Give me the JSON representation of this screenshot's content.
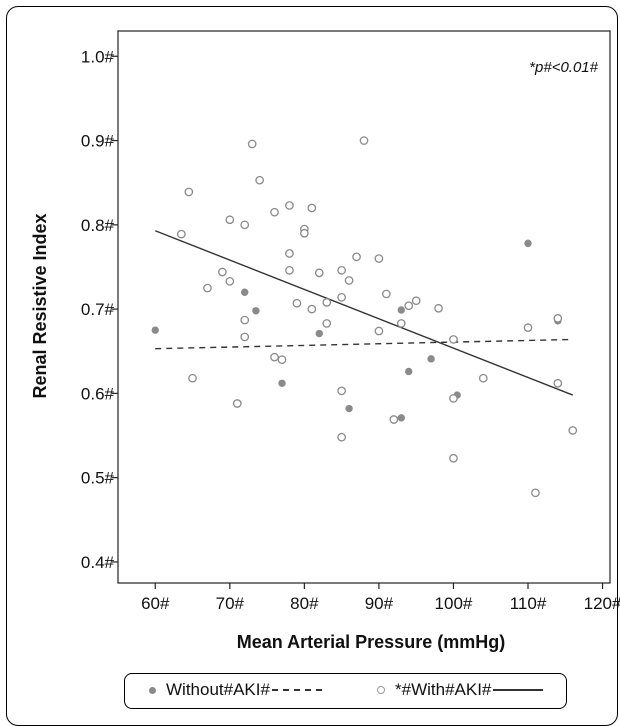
{
  "chart_data": {
    "type": "scatter",
    "title": "",
    "annotation": "*p#<0.01#",
    "xlabel": "Mean Arterial Pressure (mmHg)",
    "ylabel": "Renal Resistive Index",
    "xlim": [
      55,
      121
    ],
    "ylim": [
      0.375,
      1.03
    ],
    "x_ticks": [
      60,
      70,
      80,
      90,
      100,
      110,
      120
    ],
    "x_tick_labels": [
      "60#",
      "70#",
      "80#",
      "90#",
      "100#",
      "110#",
      "120#"
    ],
    "y_ticks": [
      0.4,
      0.5,
      0.6,
      0.7,
      0.8,
      0.9,
      1.0
    ],
    "y_tick_labels": [
      "0.4#",
      "0.5#",
      "0.6#",
      "0.7#",
      "0.8#",
      "0.9#",
      "1.0#"
    ],
    "legend": {
      "items": [
        {
          "label": "Without#AKI#",
          "marker": "filled",
          "line": "dashed"
        },
        {
          "label": "*#With#AKI#",
          "marker": "open",
          "line": "solid"
        }
      ]
    },
    "series": [
      {
        "name": "Without#AKI#",
        "marker": "filled",
        "color": "#8a8a8a",
        "points": [
          [
            60,
            0.675
          ],
          [
            72,
            0.72
          ],
          [
            73.5,
            0.698
          ],
          [
            77,
            0.612
          ],
          [
            82,
            0.671
          ],
          [
            86,
            0.582
          ],
          [
            93,
            0.699
          ],
          [
            94,
            0.626
          ],
          [
            93,
            0.571
          ],
          [
            97,
            0.641
          ],
          [
            100.5,
            0.598
          ],
          [
            110,
            0.778
          ],
          [
            114,
            0.686
          ]
        ],
        "trend": {
          "x": [
            60,
            116
          ],
          "y": [
            0.653,
            0.664
          ],
          "style": "dashed"
        }
      },
      {
        "name": "*#With#AKI#",
        "marker": "open",
        "color": "#8a8a8a",
        "points": [
          [
            63.5,
            0.789
          ],
          [
            64.5,
            0.839
          ],
          [
            65,
            0.618
          ],
          [
            67,
            0.725
          ],
          [
            69,
            0.744
          ],
          [
            70,
            0.806
          ],
          [
            70,
            0.733
          ],
          [
            71,
            0.588
          ],
          [
            72,
            0.8
          ],
          [
            72,
            0.687
          ],
          [
            72,
            0.667
          ],
          [
            73,
            0.896
          ],
          [
            74,
            0.853
          ],
          [
            76,
            0.815
          ],
          [
            76,
            0.643
          ],
          [
            77,
            0.64
          ],
          [
            78,
            0.823
          ],
          [
            78,
            0.766
          ],
          [
            78,
            0.746
          ],
          [
            79,
            0.707
          ],
          [
            80,
            0.795
          ],
          [
            80,
            0.79
          ],
          [
            81,
            0.82
          ],
          [
            81,
            0.7
          ],
          [
            82,
            0.743
          ],
          [
            83,
            0.708
          ],
          [
            83,
            0.683
          ],
          [
            85,
            0.746
          ],
          [
            85,
            0.714
          ],
          [
            85,
            0.603
          ],
          [
            85,
            0.548
          ],
          [
            86,
            0.734
          ],
          [
            87,
            0.762
          ],
          [
            88,
            0.9
          ],
          [
            90,
            0.76
          ],
          [
            90,
            0.674
          ],
          [
            91,
            0.718
          ],
          [
            92,
            0.569
          ],
          [
            93,
            0.683
          ],
          [
            94,
            0.704
          ],
          [
            95,
            0.71
          ],
          [
            98,
            0.701
          ],
          [
            100,
            0.664
          ],
          [
            100,
            0.594
          ],
          [
            100,
            0.523
          ],
          [
            104,
            0.618
          ],
          [
            110,
            0.678
          ],
          [
            111,
            0.482
          ],
          [
            114,
            0.689
          ],
          [
            114,
            0.612
          ],
          [
            116,
            0.556
          ]
        ],
        "trend": {
          "x": [
            60,
            116
          ],
          "y": [
            0.793,
            0.598
          ],
          "style": "solid"
        }
      }
    ]
  }
}
